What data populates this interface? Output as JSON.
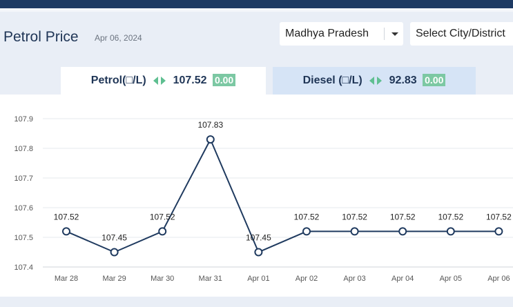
{
  "header": {
    "title": "Petrol Price",
    "date": "Apr 06, 2024",
    "state_value": "Madhya Pradesh",
    "city_placeholder": "Select City/District"
  },
  "tabs": {
    "petrol": {
      "label": "Petrol(□/L)",
      "price": "107.52",
      "change": "0.00",
      "active": true
    },
    "diesel": {
      "label": "Diesel (□/L)",
      "price": "92.83",
      "change": "0.00",
      "active": false
    }
  },
  "colors": {
    "line": "#1f3a5f",
    "badge": "#7cc8a3",
    "arrow": "#5fbf91"
  },
  "chart_data": {
    "type": "line",
    "title": "",
    "xlabel": "",
    "ylabel": "",
    "categories": [
      "Mar 28",
      "Mar 29",
      "Mar 30",
      "Mar 31",
      "Apr 01",
      "Apr 02",
      "Apr 03",
      "Apr 04",
      "Apr 05",
      "Apr 06"
    ],
    "series": [
      {
        "values": [
          107.52,
          107.45,
          107.52,
          107.83,
          107.45,
          107.52,
          107.52,
          107.52,
          107.52,
          107.52
        ]
      }
    ],
    "data_labels": [
      "107.52",
      "107.45",
      "107.52",
      "107.83",
      "107.45",
      "107.52",
      "107.52",
      "107.52",
      "107.52",
      "107.52"
    ],
    "ylim": [
      107.4,
      107.9
    ],
    "yticks": [
      "107.9",
      "107.8",
      "107.7",
      "107.6",
      "107.5",
      "107.4"
    ],
    "grid": true,
    "legend": "none"
  }
}
